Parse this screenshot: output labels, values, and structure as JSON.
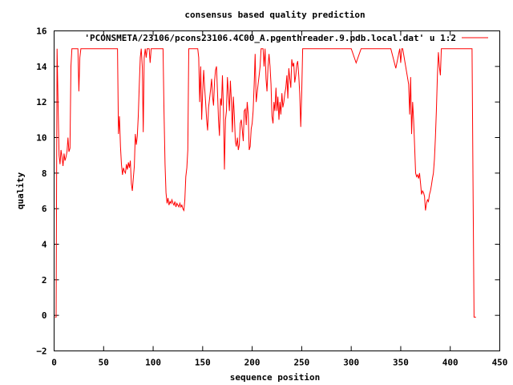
{
  "chart_data": {
    "type": "line",
    "title": "consensus based quality prediction",
    "xlabel": "sequence position",
    "ylabel": "quality",
    "xlim": [
      0,
      450
    ],
    "ylim": [
      -2,
      16
    ],
    "xticks": [
      0,
      50,
      100,
      150,
      200,
      250,
      300,
      350,
      400,
      450
    ],
    "yticks": [
      -2,
      0,
      2,
      4,
      6,
      8,
      10,
      12,
      14,
      16
    ],
    "xtick_labels": [
      "0",
      "50",
      "100",
      "150",
      "200",
      "250",
      "300",
      "350",
      "400",
      "450"
    ],
    "ytick_labels": [
      "−2",
      "0",
      "2",
      "4",
      "6",
      "8",
      "10",
      "12",
      "14",
      "16"
    ],
    "legend": {
      "placement": "top-right"
    },
    "series": [
      {
        "name": "'PCONSMETA/23106/pcons23106.4C00_A.pgenthreader.9.pdb.local.dat' u 1:2",
        "color": "#ff0000",
        "x": [
          1,
          2,
          3,
          4,
          5,
          6,
          7,
          8,
          9,
          10,
          11,
          12,
          13,
          14,
          15,
          16,
          17,
          18,
          19,
          20,
          21,
          22,
          23,
          24,
          25,
          26,
          27,
          28,
          30,
          35,
          40,
          45,
          50,
          55,
          60,
          64,
          65,
          66,
          67,
          68,
          69,
          70,
          71,
          72,
          73,
          74,
          75,
          76,
          77,
          78,
          79,
          80,
          81,
          82,
          83,
          84,
          85,
          86,
          87,
          88,
          89,
          90,
          91,
          92,
          93,
          94,
          95,
          96,
          97,
          98,
          99,
          100,
          105,
          110,
          111,
          112,
          113,
          114,
          115,
          116,
          117,
          118,
          119,
          120,
          121,
          122,
          123,
          124,
          125,
          126,
          127,
          128,
          129,
          130,
          131,
          132,
          133,
          134,
          135,
          136,
          140,
          145,
          146,
          147,
          148,
          149,
          150,
          151,
          152,
          153,
          154,
          155,
          156,
          157,
          158,
          159,
          160,
          161,
          162,
          163,
          164,
          165,
          166,
          167,
          168,
          169,
          170,
          171,
          172,
          173,
          174,
          175,
          176,
          177,
          178,
          179,
          180,
          181,
          182,
          183,
          184,
          185,
          186,
          187,
          188,
          189,
          190,
          191,
          192,
          193,
          194,
          195,
          196,
          197,
          198,
          199,
          200,
          201,
          202,
          203,
          204,
          205,
          206,
          207,
          208,
          209,
          210,
          211,
          212,
          213,
          214,
          215,
          216,
          217,
          218,
          219,
          220,
          221,
          222,
          223,
          224,
          225,
          226,
          227,
          228,
          229,
          230,
          231,
          232,
          233,
          234,
          235,
          236,
          237,
          238,
          239,
          240,
          241,
          242,
          243,
          244,
          245,
          246,
          247,
          248,
          249,
          250,
          251,
          252,
          253,
          254,
          255,
          256,
          257,
          258,
          259,
          260,
          261,
          262,
          263,
          264,
          265,
          266,
          267,
          268,
          269,
          270,
          275,
          280,
          285,
          290,
          295,
          300,
          305,
          310,
          314,
          315,
          316,
          317,
          320,
          325,
          330,
          335,
          340,
          345,
          349,
          350,
          351,
          352,
          355,
          358,
          359,
          360,
          361,
          362,
          363,
          364,
          365,
          366,
          367,
          368,
          369,
          370,
          371,
          372,
          373,
          374,
          375,
          376,
          377,
          378,
          379,
          380,
          381,
          382,
          383,
          384,
          385,
          386,
          387,
          388,
          389,
          390,
          391,
          392,
          393,
          394,
          395,
          400,
          405,
          410,
          415,
          420,
          421,
          422,
          423,
          424,
          425,
          426
        ],
        "y": [
          -0.1,
          -0.1,
          15,
          12,
          9,
          8.5,
          9.3,
          8.9,
          8.4,
          9.1,
          8.7,
          8.9,
          9.2,
          10,
          9.2,
          9.4,
          14,
          15,
          15,
          15,
          15,
          15,
          15,
          15,
          12.6,
          14.5,
          15,
          15,
          15,
          15,
          15,
          15,
          15,
          15,
          15,
          15,
          10.2,
          11.2,
          9.5,
          8.5,
          7.9,
          8.3,
          8.1,
          8,
          8.5,
          8.2,
          8.6,
          8.3,
          8.7,
          7.4,
          7,
          7.7,
          8.4,
          10.2,
          9.6,
          10.1,
          11.2,
          13,
          14.5,
          15,
          14,
          10.3,
          14.5,
          15,
          14.5,
          15,
          15,
          15,
          14.2,
          15,
          15,
          15,
          15,
          15,
          11.5,
          8.5,
          6.9,
          6.3,
          6.6,
          6.2,
          6.4,
          6.3,
          6.5,
          6.3,
          6.2,
          6.4,
          6.1,
          6.3,
          6.2,
          6.1,
          6.3,
          6.1,
          6.2,
          6,
          5.9,
          6.5,
          7.8,
          8.3,
          9.3,
          15,
          15,
          15,
          14.5,
          12,
          14,
          11,
          12.5,
          13.8,
          12.8,
          12,
          11,
          10.4,
          11.7,
          12.2,
          12.7,
          13.3,
          12.3,
          11.8,
          13.2,
          13.8,
          14,
          12.5,
          11,
          10.1,
          12.2,
          11.8,
          13.5,
          11.5,
          8.2,
          11,
          11.5,
          13.4,
          12.4,
          11.5,
          13.2,
          12,
          10.3,
          12.3,
          11.2,
          9.8,
          9.5,
          10,
          9.3,
          9.6,
          10.8,
          11,
          10.4,
          9.8,
          11.5,
          11.6,
          10.7,
          12,
          11.3,
          9.3,
          9.5,
          10.5,
          10.8,
          11.5,
          13,
          14.7,
          12,
          12.5,
          13,
          13.5,
          14,
          15,
          15,
          15,
          14,
          15,
          13.3,
          12.6,
          14,
          14.7,
          14,
          13,
          11.2,
          10.8,
          12,
          11.5,
          12.8,
          11.5,
          12.3,
          11,
          12,
          11.3,
          12.5,
          11.7,
          12,
          12.5,
          12.8,
          13.5,
          12.2,
          13.9,
          13.3,
          12.8,
          14.4,
          14,
          14.2,
          13.1,
          13.5,
          14.1,
          14.3,
          13.5,
          12.5,
          10.6,
          12.5,
          15,
          15,
          15,
          15,
          15,
          15,
          15,
          15,
          15,
          15,
          15,
          15,
          15,
          15,
          15,
          15,
          15,
          15,
          15,
          15,
          15,
          15,
          15,
          15,
          15,
          15,
          14.2,
          15,
          15,
          15,
          15,
          15,
          15,
          15,
          15,
          15,
          15,
          13.9,
          15,
          14.2,
          15,
          15,
          14,
          13,
          11.3,
          13.4,
          10.2,
          12,
          11,
          9.6,
          8,
          7.8,
          7.9,
          7.7,
          8,
          7.4,
          6.8,
          7,
          6.9,
          6.7,
          5.9,
          6.3,
          6.5,
          6.4,
          6.8,
          7,
          7.3,
          7.7,
          8,
          8.8,
          10,
          11.5,
          13.5,
          14.8,
          14,
          13.5,
          15,
          15,
          15,
          15,
          15,
          15,
          15,
          15,
          15,
          15,
          15,
          15,
          7.5,
          -0.1,
          -0.1,
          -0.1
        ]
      }
    ]
  }
}
